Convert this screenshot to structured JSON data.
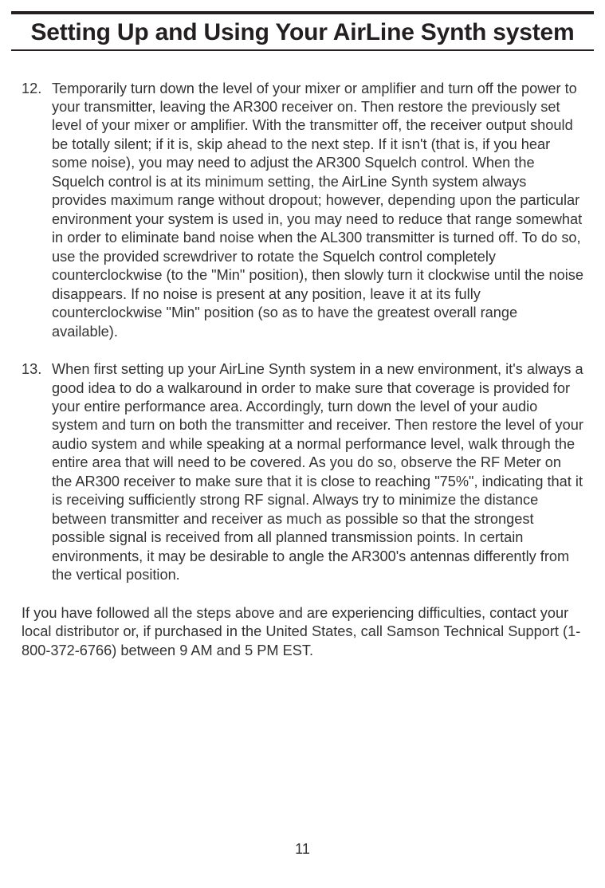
{
  "title": "Setting Up and Using Your AirLine Synth system",
  "steps": [
    {
      "num": "12.",
      "body": "Temporarily turn down the level of your mixer or amplifier and turn off the power to your transmitter, leaving the AR300 receiver on.  Then restore the previously set level of your mixer or amplifier.  With the transmitter off, the receiver output should be totally silent; if it is, skip ahead to the next step.  If it isn't (that is, if you hear some noise), you may need to adjust the AR300 Squelch control.  When the Squelch control is at its minimum setting, the AirLine Synth system always provides maximum range without dropout; however, depending upon the particular environment your system is used in, you may need to reduce that range somewhat in order to eliminate band noise when the AL300 transmitter is turned off.  To do so, use the provided screwdriver to rotate the Squelch control completely counterclockwise (to the \"Min\" position), then slowly turn it clockwise until the noise disappears.  If no noise is present at any position, leave it at its fully counterclockwise \"Min\" position (so as to have the greatest overall range available)."
    },
    {
      "num": "13.",
      "body": "When first setting up your AirLine Synth system in a new environment, it's always a good idea to do a walkaround in order to make sure that coverage is provided for your entire performance area.  Accordingly, turn down the level of your audio system and turn on both the transmitter and receiver.  Then restore the level of your audio system and while speaking at a normal performance level, walk through the entire area that will need to be covered.  As you do so, observe the RF Meter on the AR300 receiver to make sure that it is close to reaching \"75%\", indicating that it is receiving sufficiently strong RF signal.  Always try to minimize the distance between transmitter and receiver as much as possible so that the strongest possible signal is received from all planned transmission points.  In certain environments, it may be desirable to angle the AR300's antennas differently from the vertical position."
    }
  ],
  "footer": "If you have followed all the steps above and are experiencing difficulties, contact your local distributor or, if purchased in the United States, call Samson Technical Support (1-800-372-6766) between 9 AM and 5 PM EST.",
  "page_number": "11",
  "colors": {
    "rule": "#231f20",
    "text": "#333333",
    "background": "#ffffff"
  },
  "typography": {
    "title_fontsize": 30,
    "title_weight": 700,
    "body_fontsize": 18.2,
    "body_lineheight": 1.29
  }
}
